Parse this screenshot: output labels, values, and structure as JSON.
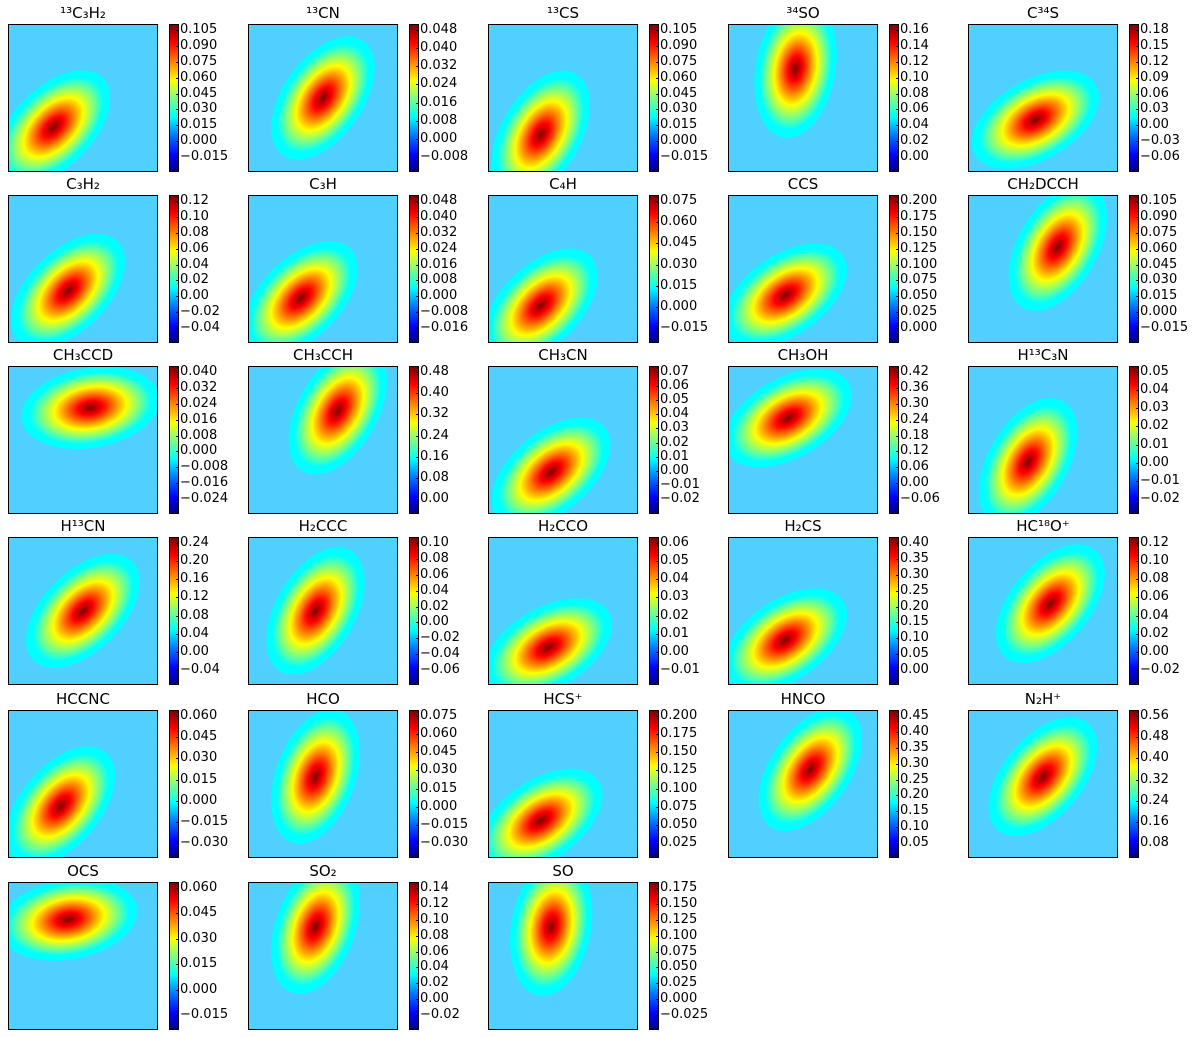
{
  "chart_data": {
    "type": "heatmap",
    "colormap": "jet",
    "colors": {
      "low": "#00007f",
      "mid": "#7fff7f",
      "high": "#7f0000"
    },
    "panels": [
      {
        "title": "¹³C₃H₂",
        "ticks": [
          "0.105",
          "0.090",
          "0.075",
          "0.060",
          "0.045",
          "0.030",
          "0.015",
          "0.000",
          "−0.015"
        ],
        "peak": [
          0.3,
          0.7
        ],
        "angle": -45
      },
      {
        "title": "¹³CN",
        "ticks": [
          "0.048",
          "0.040",
          "0.032",
          "0.024",
          "0.016",
          "0.008",
          "0.000",
          "−0.008"
        ],
        "peak": [
          0.5,
          0.5
        ],
        "angle": -55
      },
      {
        "title": "¹³CS",
        "ticks": [
          "0.105",
          "0.090",
          "0.075",
          "0.060",
          "0.045",
          "0.030",
          "0.015",
          "0.000",
          "−0.015"
        ],
        "peak": [
          0.35,
          0.75
        ],
        "angle": -60
      },
      {
        "title": "³⁴SO",
        "ticks": [
          "0.16",
          "0.14",
          "0.12",
          "0.10",
          "0.08",
          "0.06",
          "0.04",
          "0.02",
          "0.00"
        ],
        "peak": [
          0.45,
          0.3
        ],
        "angle": -80
      },
      {
        "title": "C³⁴S",
        "ticks": [
          "0.18",
          "0.15",
          "0.12",
          "0.09",
          "0.06",
          "0.03",
          "0.00",
          "−0.03",
          "−0.06"
        ],
        "peak": [
          0.45,
          0.65
        ],
        "angle": -30
      },
      {
        "title": "C₃H₂",
        "ticks": [
          "0.12",
          "0.10",
          "0.08",
          "0.06",
          "0.04",
          "0.02",
          "0.00",
          "−0.02",
          "−0.04"
        ],
        "peak": [
          0.4,
          0.65
        ],
        "angle": -45
      },
      {
        "title": "C₃H",
        "ticks": [
          "0.048",
          "0.040",
          "0.032",
          "0.024",
          "0.016",
          "0.008",
          "0.000",
          "−0.008",
          "−0.016"
        ],
        "peak": [
          0.35,
          0.7
        ],
        "angle": -45
      },
      {
        "title": "C₄H",
        "ticks": [
          "0.075",
          "0.060",
          "0.045",
          "0.030",
          "0.015",
          "0.000",
          "−0.015"
        ],
        "peak": [
          0.35,
          0.75
        ],
        "angle": -45
      },
      {
        "title": "CCS",
        "ticks": [
          "0.200",
          "0.175",
          "0.150",
          "0.125",
          "0.100",
          "0.075",
          "0.050",
          "0.025",
          "0.000"
        ],
        "peak": [
          0.38,
          0.68
        ],
        "angle": -35
      },
      {
        "title": "CH₂DCCH",
        "ticks": [
          "0.105",
          "0.090",
          "0.075",
          "0.060",
          "0.045",
          "0.030",
          "0.015",
          "0.000",
          "−0.015"
        ],
        "peak": [
          0.6,
          0.35
        ],
        "angle": -60
      },
      {
        "title": "CH₃CCD",
        "ticks": [
          "0.040",
          "0.032",
          "0.024",
          "0.016",
          "0.008",
          "0.000",
          "−0.008",
          "−0.016",
          "−0.024"
        ],
        "peak": [
          0.55,
          0.28
        ],
        "angle": -10
      },
      {
        "title": "CH₃CCH",
        "ticks": [
          "0.48",
          "0.40",
          "0.32",
          "0.24",
          "0.16",
          "0.08",
          "0.00"
        ],
        "peak": [
          0.6,
          0.3
        ],
        "angle": -60
      },
      {
        "title": "CH₃CN",
        "ticks": [
          "0.07",
          "0.06",
          "0.05",
          "0.04",
          "0.03",
          "0.02",
          "0.01",
          "0.00",
          "−0.01",
          "−0.02"
        ],
        "peak": [
          0.42,
          0.72
        ],
        "angle": -40
      },
      {
        "title": "CH₃OH",
        "ticks": [
          "0.42",
          "0.36",
          "0.30",
          "0.24",
          "0.18",
          "0.12",
          "0.06",
          "0.00",
          "−0.06"
        ],
        "peak": [
          0.4,
          0.35
        ],
        "angle": -30
      },
      {
        "title": "H¹³C₃N",
        "ticks": [
          "0.05",
          "0.04",
          "0.03",
          "0.02",
          "0.01",
          "0.00",
          "−0.01",
          "−0.02"
        ],
        "peak": [
          0.4,
          0.65
        ],
        "angle": -60
      },
      {
        "title": "H¹³CN",
        "ticks": [
          "0.24",
          "0.20",
          "0.16",
          "0.12",
          "0.08",
          "0.04",
          "0.00",
          "−0.04"
        ],
        "peak": [
          0.5,
          0.5
        ],
        "angle": -45
      },
      {
        "title": "H₂CCC",
        "ticks": [
          "0.10",
          "0.08",
          "0.06",
          "0.04",
          "0.02",
          "0.00",
          "−0.02",
          "−0.04",
          "−0.06"
        ],
        "peak": [
          0.45,
          0.5
        ],
        "angle": -60
      },
      {
        "title": "H₂CCO",
        "ticks": [
          "0.06",
          "0.05",
          "0.04",
          "0.03",
          "0.02",
          "0.01",
          "0.00",
          "−0.01"
        ],
        "peak": [
          0.4,
          0.75
        ],
        "angle": -30
      },
      {
        "title": "H₂CS",
        "ticks": [
          "0.40",
          "0.35",
          "0.30",
          "0.25",
          "0.20",
          "0.15",
          "0.10",
          "0.05",
          "0.00"
        ],
        "peak": [
          0.38,
          0.7
        ],
        "angle": -35
      },
      {
        "title": "HC¹⁸O⁺",
        "ticks": [
          "0.12",
          "0.10",
          "0.08",
          "0.06",
          "0.04",
          "0.02",
          "0.00",
          "−0.02"
        ],
        "peak": [
          0.55,
          0.45
        ],
        "angle": -50
      },
      {
        "title": "HCCNC",
        "ticks": [
          "0.060",
          "0.045",
          "0.030",
          "0.015",
          "0.000",
          "−0.015",
          "−0.030"
        ],
        "peak": [
          0.35,
          0.65
        ],
        "angle": -50
      },
      {
        "title": "HCO",
        "ticks": [
          "0.075",
          "0.060",
          "0.045",
          "0.030",
          "0.015",
          "0.000",
          "−0.015",
          "−0.030"
        ],
        "peak": [
          0.45,
          0.45
        ],
        "angle": -70
      },
      {
        "title": "HCS⁺",
        "ticks": [
          "0.200",
          "0.175",
          "0.150",
          "0.125",
          "0.100",
          "0.075",
          "0.050",
          "0.025"
        ],
        "peak": [
          0.35,
          0.75
        ],
        "angle": -35
      },
      {
        "title": "HNCO",
        "ticks": [
          "0.45",
          "0.40",
          "0.35",
          "0.30",
          "0.25",
          "0.20",
          "0.15",
          "0.10",
          "0.05"
        ],
        "peak": [
          0.55,
          0.4
        ],
        "angle": -55
      },
      {
        "title": "N₂H⁺",
        "ticks": [
          "0.56",
          "0.48",
          "0.40",
          "0.32",
          "0.24",
          "0.16",
          "0.08"
        ],
        "peak": [
          0.5,
          0.45
        ],
        "angle": -50
      },
      {
        "title": "OCS",
        "ticks": [
          "0.060",
          "0.045",
          "0.030",
          "0.015",
          "0.000",
          "−0.015"
        ],
        "peak": [
          0.4,
          0.25
        ],
        "angle": -10
      },
      {
        "title": "SO₂",
        "ticks": [
          "0.14",
          "0.12",
          "0.10",
          "0.08",
          "0.06",
          "0.04",
          "0.02",
          "0.00",
          "−0.02"
        ],
        "peak": [
          0.45,
          0.3
        ],
        "angle": -70
      },
      {
        "title": "SO",
        "ticks": [
          "0.175",
          "0.150",
          "0.125",
          "0.100",
          "0.075",
          "0.050",
          "0.025",
          "0.000",
          "−0.025"
        ],
        "peak": [
          0.42,
          0.3
        ],
        "angle": -80
      }
    ]
  }
}
